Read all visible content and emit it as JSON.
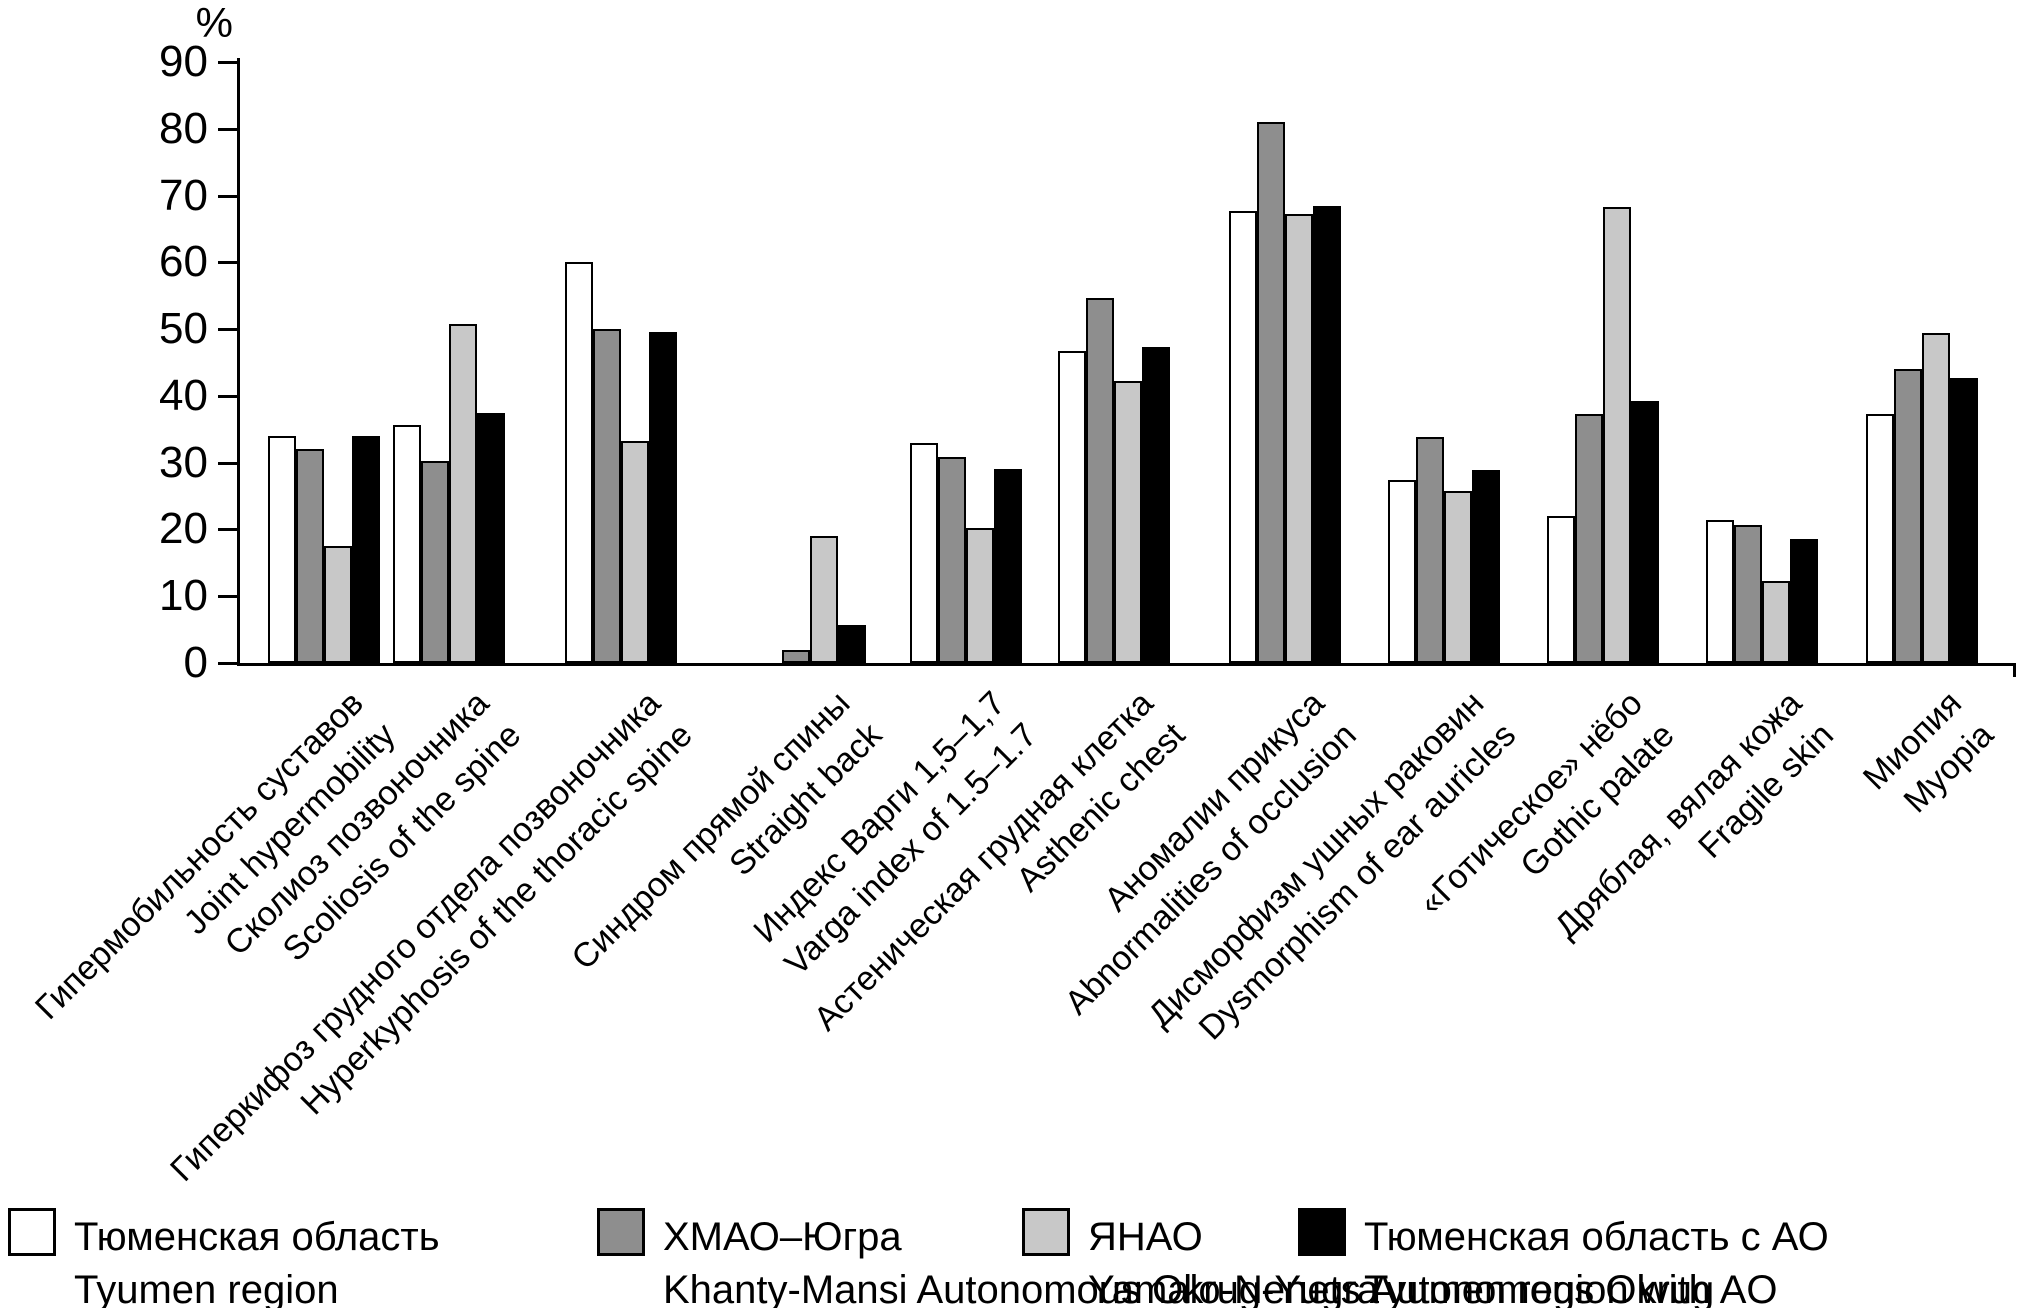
{
  "chart_data": {
    "type": "bar",
    "title": "",
    "ylabel": "%",
    "xlabel": "",
    "ylim": [
      0,
      90
    ],
    "yticks": [
      0,
      10,
      20,
      30,
      40,
      50,
      60,
      70,
      80,
      90
    ],
    "grid": false,
    "legend_position": "bottom",
    "categories": [
      {
        "ru": "Гипермобильность суставов",
        "en": "Joint hypermobility"
      },
      {
        "ru": "Сколиоз позвоночника",
        "en": "Scoliosis of the spine"
      },
      {
        "ru": "Гиперкифоз грудного отдела позвоночника",
        "en": "Hyperkyphosis of the thoracic spine"
      },
      {
        "ru": "Синдром прямой спины",
        "en": "Straight back"
      },
      {
        "ru": "Индекс Варги 1,5–1,7",
        "en": "Varga index of 1.5–1.7"
      },
      {
        "ru": "Астеническая грудная клетка",
        "en": "Asthenic chest"
      },
      {
        "ru": "Аномалии прикуса",
        "en": "Abnormalities of occlusion"
      },
      {
        "ru": "Дисморфизм ушных раковин",
        "en": "Dysmorphism of ear auricles"
      },
      {
        "ru": "«Готическое» нёбо",
        "en": "Gothic palate"
      },
      {
        "ru": "Дряблая, вялая кожа",
        "en": "Fragile skin"
      },
      {
        "ru": "Миопия",
        "en": "Myopia"
      }
    ],
    "series": [
      {
        "key": "tyumen-region",
        "name_ru": "Тюменская область",
        "name_en": "Tyumen region",
        "color": "#ffffff",
        "border_color": "#000000",
        "values": [
          34,
          35.7,
          60,
          0,
          32.9,
          46.7,
          67.7,
          27.4,
          22,
          21.4,
          37.3
        ]
      },
      {
        "key": "khanty-mansi",
        "name_ru": "ХМАО–Югра",
        "name_en": "Khanty-Mansi Autonomous Okrug-Yugra",
        "color": "#8e8e8e",
        "border_color": "#000000",
        "values": [
          32,
          30.3,
          50,
          1.9,
          30.9,
          54.6,
          81,
          33.8,
          37.3,
          20.6,
          44.1
        ]
      },
      {
        "key": "yanao",
        "name_ru": "ЯНАО",
        "name_en": "Yamalo-Nenets Autonomous Okrug",
        "color": "#c8c8c8",
        "border_color": "#000000",
        "values": [
          17.5,
          50.7,
          33.2,
          19,
          20.2,
          42.2,
          67.2,
          25.8,
          68.3,
          12.3,
          49.4
        ]
      },
      {
        "key": "tyumen-with-ao",
        "name_ru": "Тюменская область с АО",
        "name_en": "Tyumen region with AO",
        "color": "#000000",
        "border_color": "#000000",
        "values": [
          34,
          37.5,
          49.6,
          5.7,
          29,
          47.3,
          68.4,
          28.9,
          39.2,
          18.6,
          42.7
        ]
      }
    ]
  }
}
